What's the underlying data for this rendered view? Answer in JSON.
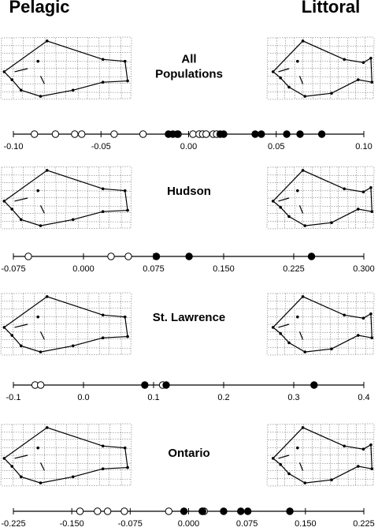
{
  "headers": [
    "Pelagic",
    "Littoral"
  ],
  "chart_data": [
    {
      "type": "strip",
      "title_lines": [
        "All",
        "Populations"
      ],
      "xlim": [
        -0.1,
        0.1
      ],
      "xticks": [
        {
          "value": -0.1,
          "label": "-0.10"
        },
        {
          "value": -0.05,
          "label": "-0.05"
        },
        {
          "value": 0,
          "label": "0.00"
        },
        {
          "value": 0.05,
          "label": "0.05"
        },
        {
          "value": 0.1,
          "label": "0.10"
        }
      ],
      "series": [
        {
          "color": "#ffffff",
          "values": [
            -0.088,
            -0.076,
            -0.065,
            -0.061,
            -0.0425,
            -0.026,
            -0.006,
            0.0025,
            0.006,
            0.008,
            0.01,
            0.014,
            0.016
          ]
        },
        {
          "color": "#000000",
          "values": [
            -0.0115,
            -0.009,
            -0.0065,
            0.018,
            0.02,
            0.038,
            0.0415,
            0.056,
            0.0636,
            0.076
          ]
        }
      ]
    },
    {
      "type": "strip",
      "title_lines": [
        "Hudson"
      ],
      "xlim": [
        -0.075,
        0.3
      ],
      "xticks": [
        -0.075,
        {
          "value": 0,
          "label": "0.000"
        },
        0.075,
        {
          "value": 0.15,
          "label": "0.150"
        },
        0.225,
        {
          "value": 0.3,
          "label": "0.300"
        }
      ],
      "series": [
        {
          "color": "#ffffff",
          "values": [
            -0.059,
            0.0295,
            0.048
          ]
        },
        {
          "color": "#000000",
          "values": [
            0.078,
            0.113,
            0.244
          ]
        }
      ]
    },
    {
      "type": "strip",
      "title_lines": [
        "St. Lawrence"
      ],
      "xlim": [
        -0.1,
        0.4
      ],
      "xticks": [
        -0.1,
        {
          "value": 0,
          "label": "0.0"
        },
        0.1,
        0.2,
        0.3,
        0.4
      ],
      "series": [
        {
          "color": "#ffffff",
          "values": [
            -0.069,
            -0.061,
            0.113
          ]
        },
        {
          "color": "#000000",
          "values": [
            0.0875,
            0.118,
            0.329
          ]
        }
      ]
    },
    {
      "type": "strip",
      "title_lines": [
        "Ontario"
      ],
      "xlim": [
        -0.225,
        0.225
      ],
      "xticks": [
        -0.225,
        {
          "value": -0.15,
          "label": "-0.150"
        },
        -0.075,
        {
          "value": 0,
          "label": "0.000"
        },
        0.075,
        {
          "value": 0.15,
          "label": "0.150"
        },
        0.225
      ],
      "series": [
        {
          "color": "#ffffff",
          "values": [
            -0.1395,
            -0.117,
            -0.104,
            -0.0825,
            -0.0255,
            0.0175,
            0.02
          ]
        },
        {
          "color": "#000000",
          "values": [
            -0.006,
            0.018,
            0.045,
            0.067,
            0.076,
            0.13
          ]
        }
      ]
    }
  ]
}
